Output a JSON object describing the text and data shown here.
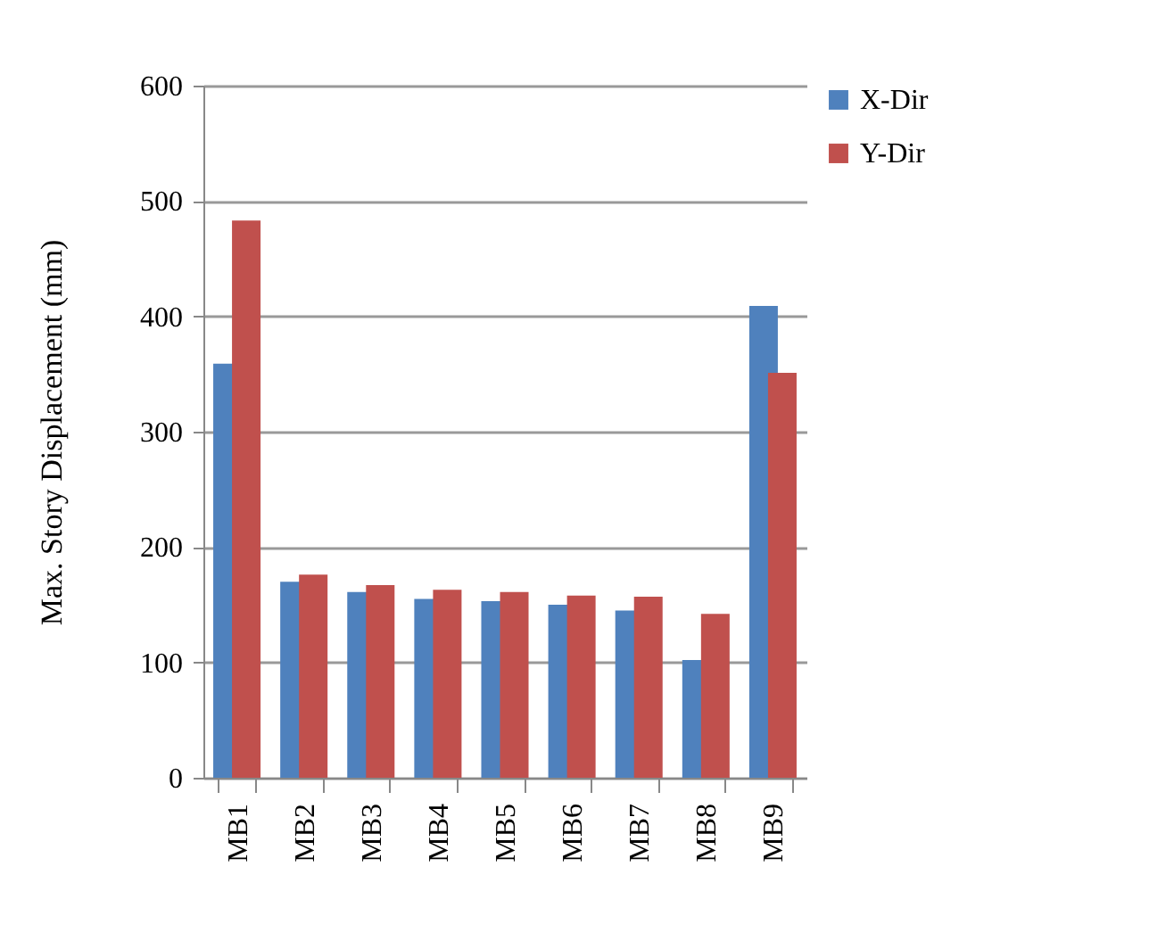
{
  "chart_data": {
    "type": "bar",
    "ylabel": "Max. Story Displacement (mm)",
    "categories": [
      "MB1",
      "MB2",
      "MB3",
      "MB4",
      "MB5",
      "MB6",
      "MB7",
      "MB8",
      "MB9"
    ],
    "series": [
      {
        "name": "X-Dir",
        "color": "#4f81bd",
        "values": [
          359,
          170,
          161,
          155,
          153,
          150,
          145,
          102,
          409
        ]
      },
      {
        "name": "Y-Dir",
        "color": "#c0504d",
        "values": [
          483,
          176,
          167,
          163,
          161,
          158,
          157,
          142,
          351
        ]
      }
    ],
    "ylim": [
      0,
      600
    ],
    "yticks": [
      0,
      100,
      200,
      300,
      400,
      500,
      600
    ],
    "grid": "y",
    "legend": "right"
  }
}
